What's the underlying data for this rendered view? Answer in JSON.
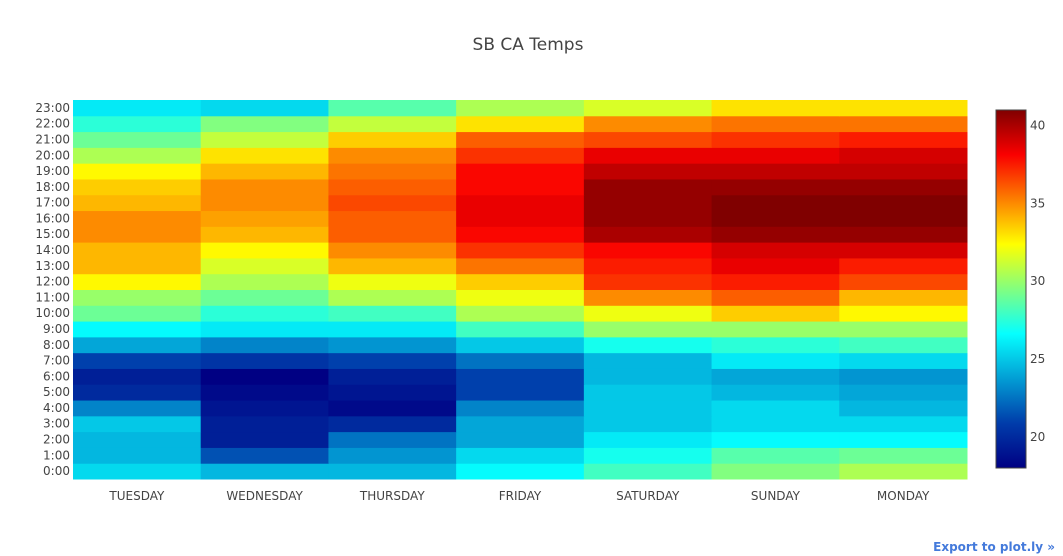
{
  "chart_data": {
    "type": "heatmap",
    "title": "SB CA Temps",
    "colorscale": "Jet",
    "zmin": 18,
    "zmax": 41,
    "colorbar_ticks": [
      20,
      25,
      30,
      35,
      40
    ],
    "x": [
      "TUESDAY",
      "WEDNESDAY",
      "THURSDAY",
      "FRIDAY",
      "SATURDAY",
      "SUNDAY",
      "MONDAY"
    ],
    "y": [
      "0:00",
      "1:00",
      "2:00",
      "3:00",
      "4:00",
      "5:00",
      "6:00",
      "7:00",
      "8:00",
      "9:00",
      "10:00",
      "11:00",
      "12:00",
      "13:00",
      "14:00",
      "15:00",
      "16:00",
      "17:00",
      "18:00",
      "19:00",
      "20:00",
      "21:00",
      "22:00",
      "23:00"
    ],
    "z": [
      [
        25.5,
        24.5,
        24.5,
        26.5,
        28.0,
        29.5,
        30.5
      ],
      [
        24.5,
        21.5,
        23.5,
        25.5,
        27.0,
        28.5,
        29.0
      ],
      [
        24.5,
        19.5,
        22.5,
        24.0,
        26.0,
        26.5,
        26.5
      ],
      [
        25.0,
        19.5,
        20.0,
        24.0,
        25.0,
        25.5,
        25.5
      ],
      [
        23.0,
        19.0,
        18.5,
        23.0,
        25.0,
        25.5,
        24.5
      ],
      [
        20.0,
        18.5,
        19.0,
        21.0,
        25.0,
        24.5,
        24.0
      ],
      [
        19.5,
        18.0,
        19.5,
        21.0,
        24.5,
        24.0,
        23.5
      ],
      [
        21.0,
        20.5,
        21.0,
        22.5,
        24.5,
        26.0,
        25.5
      ],
      [
        24.0,
        23.0,
        23.5,
        25.0,
        27.0,
        27.5,
        28.0
      ],
      [
        26.5,
        26.0,
        26.0,
        28.0,
        30.0,
        30.0,
        30.0
      ],
      [
        29.0,
        27.5,
        28.0,
        30.5,
        32.0,
        33.5,
        32.5
      ],
      [
        30.0,
        29.0,
        30.5,
        32.0,
        35.0,
        36.0,
        34.0
      ],
      [
        32.5,
        30.5,
        32.0,
        33.5,
        37.0,
        37.5,
        36.5
      ],
      [
        34.0,
        31.5,
        34.0,
        35.5,
        37.5,
        38.5,
        37.5
      ],
      [
        34.0,
        32.5,
        35.0,
        37.0,
        38.0,
        39.0,
        39.0
      ],
      [
        35.0,
        34.0,
        36.0,
        38.0,
        40.0,
        40.5,
        40.5
      ],
      [
        35.0,
        34.5,
        36.0,
        38.5,
        40.5,
        41.0,
        41.0
      ],
      [
        34.0,
        35.0,
        36.5,
        38.5,
        40.5,
        41.0,
        41.0
      ],
      [
        33.5,
        35.0,
        36.0,
        38.0,
        40.5,
        40.5,
        40.5
      ],
      [
        32.5,
        34.0,
        35.5,
        38.0,
        39.5,
        39.5,
        39.5
      ],
      [
        30.5,
        33.0,
        35.0,
        37.0,
        38.5,
        38.5,
        39.0
      ],
      [
        29.0,
        31.0,
        33.5,
        36.0,
        36.5,
        37.0,
        37.5
      ],
      [
        27.5,
        29.5,
        31.0,
        33.0,
        35.0,
        35.5,
        35.5
      ],
      [
        26.0,
        25.5,
        28.5,
        30.5,
        31.5,
        33.0,
        33.0
      ]
    ]
  },
  "export_link": {
    "label": "Export to plot.ly »"
  }
}
